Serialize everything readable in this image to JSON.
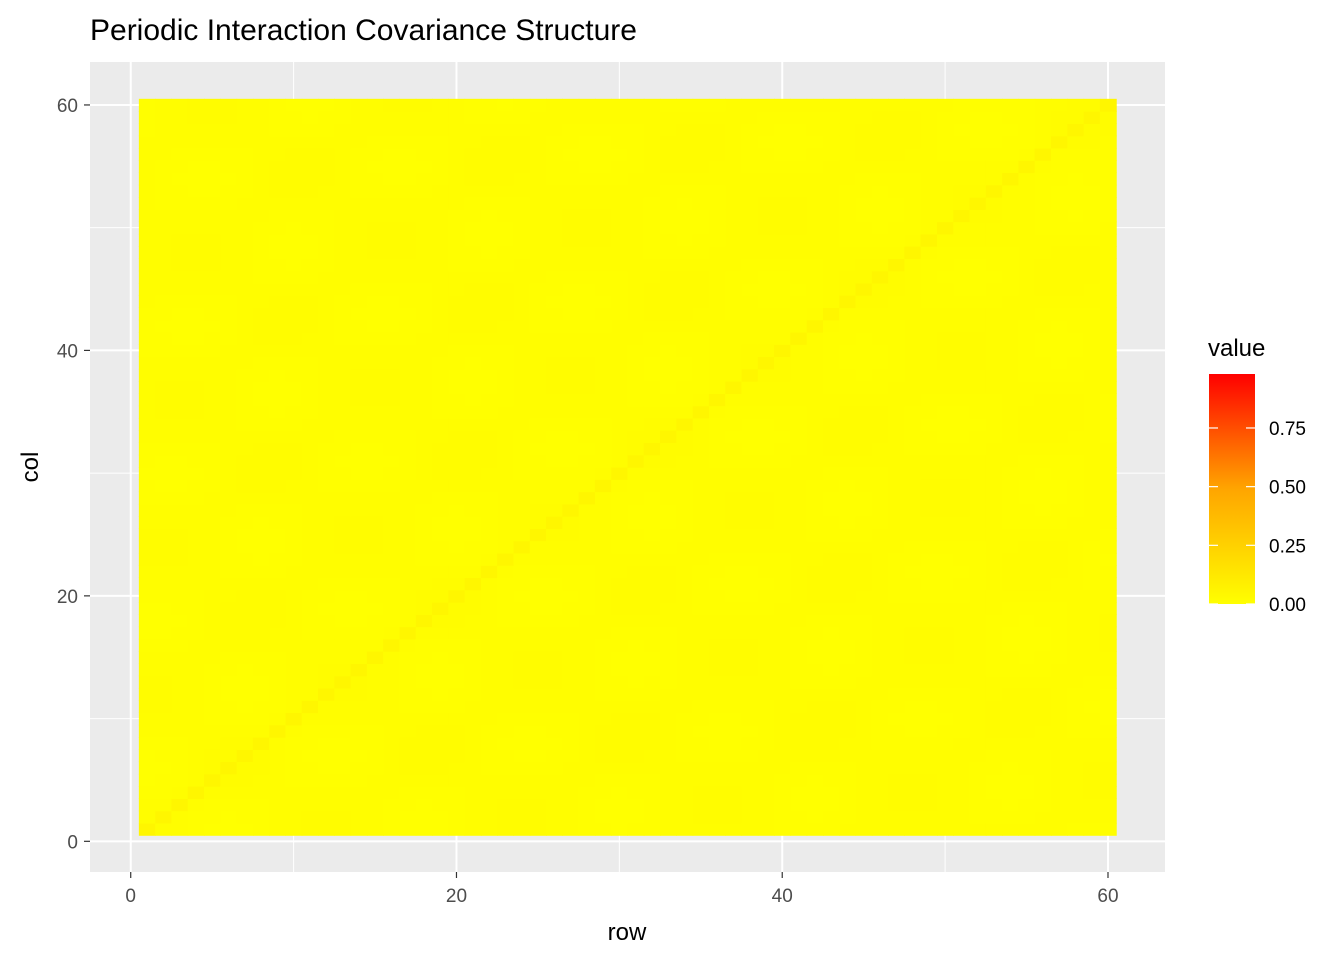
{
  "chart_data": {
    "type": "heatmap",
    "title": "Periodic Interaction Covariance Structure",
    "xlabel": "row",
    "ylabel": "col",
    "xlim": [
      -2.5,
      63.5
    ],
    "ylim": [
      -2.5,
      63.5
    ],
    "x_ticks": [
      0,
      20,
      40,
      60
    ],
    "y_ticks": [
      0,
      20,
      40,
      60
    ],
    "grid": true,
    "n": 60,
    "diagonal_value": 0.05,
    "off_diagonal_max": 0.03,
    "periods": [
      11,
      13
    ],
    "legend": {
      "title": "value",
      "position": "right",
      "ticks": [
        0.0,
        0.25,
        0.5,
        0.75
      ],
      "tick_labels": [
        "0.00",
        "0.25",
        "0.50",
        "0.75"
      ],
      "range": [
        0.0,
        0.98
      ],
      "colors": [
        "#ffff00",
        "#ffa500",
        "#ff0000"
      ]
    },
    "panel_color": "#ebebeb",
    "grid_color": "#ffffff"
  }
}
